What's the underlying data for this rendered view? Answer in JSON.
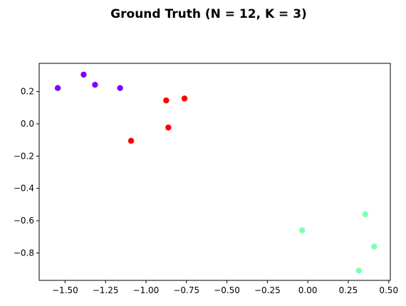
{
  "chart_data": {
    "type": "scatter",
    "title": "Ground Truth (N = 12, K = 3)",
    "xlabel": "",
    "ylabel": "",
    "xlim": [
      -1.66,
      0.51
    ],
    "ylim": [
      -0.97,
      0.375
    ],
    "x_ticks": [
      -1.5,
      -1.25,
      -1.0,
      -0.75,
      -0.5,
      -0.25,
      0.0,
      0.25,
      0.5
    ],
    "x_tick_labels": [
      "−1.50",
      "−1.25",
      "−1.00",
      "−0.75",
      "−0.50",
      "−0.25",
      "0.00",
      "0.25",
      "0.50"
    ],
    "y_ticks": [
      0.2,
      0.0,
      -0.2,
      -0.4,
      -0.6,
      -0.8
    ],
    "y_tick_labels": [
      "0.2",
      "0.0",
      "−0.2",
      "−0.4",
      "−0.6",
      "−0.8"
    ],
    "grid": false,
    "series": [
      {
        "color": "#8000ff",
        "points": [
          {
            "x": -1.545,
            "y": 0.222
          },
          {
            "x": -1.385,
            "y": 0.305
          },
          {
            "x": -1.315,
            "y": 0.242
          },
          {
            "x": -1.16,
            "y": 0.222
          }
        ]
      },
      {
        "color": "#ff0000",
        "points": [
          {
            "x": -0.875,
            "y": 0.145
          },
          {
            "x": -0.762,
            "y": 0.157
          },
          {
            "x": -0.862,
            "y": -0.023
          },
          {
            "x": -1.092,
            "y": -0.105
          }
        ]
      },
      {
        "color": "#80ffb4",
        "points": [
          {
            "x": -0.035,
            "y": -0.66
          },
          {
            "x": 0.355,
            "y": -0.56
          },
          {
            "x": 0.41,
            "y": -0.76
          },
          {
            "x": 0.315,
            "y": -0.91
          }
        ]
      }
    ]
  }
}
